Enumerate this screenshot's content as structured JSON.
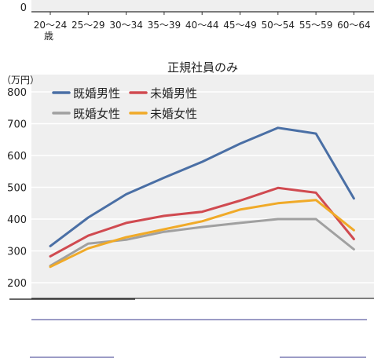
{
  "chart_data": [
    {
      "type": "line",
      "note_text": "",
      "categories": [
        "20～24\n歳",
        "25～29",
        "30～34",
        "35～39",
        "40～44",
        "45～49",
        "50～54",
        "55～59",
        "60～64"
      ],
      "ytick_labels": [
        "0"
      ],
      "series": []
    },
    {
      "type": "line",
      "title": "正規社員のみ",
      "ylabel": "（万円）",
      "ylim": [
        200,
        800
      ],
      "yticks": [
        200,
        300,
        400,
        500,
        600,
        700,
        800
      ],
      "ytick_labels": [
        "200",
        "300",
        "400",
        "500",
        "600",
        "700",
        "800"
      ],
      "categories": [
        "20～24歳",
        "25～29",
        "30～34",
        "35～39",
        "40～44",
        "45～49",
        "50～54",
        "55～59",
        "60～64"
      ],
      "grid": true,
      "legend_position": "top-left",
      "series": [
        {
          "name": "既婚男性",
          "color": "#4a6fa5",
          "values": [
            315,
            405,
            478,
            530,
            580,
            637,
            687,
            669,
            465
          ]
        },
        {
          "name": "未婚男性",
          "color": "#d04a50",
          "values": [
            283,
            348,
            388,
            410,
            423,
            458,
            498,
            483,
            337
          ]
        },
        {
          "name": "既婚女性",
          "color": "#a0a0a0",
          "values": [
            253,
            323,
            335,
            360,
            375,
            388,
            400,
            400,
            305
          ]
        },
        {
          "name": "未婚女性",
          "color": "#f0aa28",
          "values": [
            250,
            308,
            343,
            368,
            393,
            430,
            450,
            460,
            365
          ]
        }
      ]
    }
  ],
  "colors": {
    "grid": "#ffffff",
    "plot_bg": "#efefef",
    "axis": "#333333",
    "footnote_line": "#3a3a8c"
  }
}
